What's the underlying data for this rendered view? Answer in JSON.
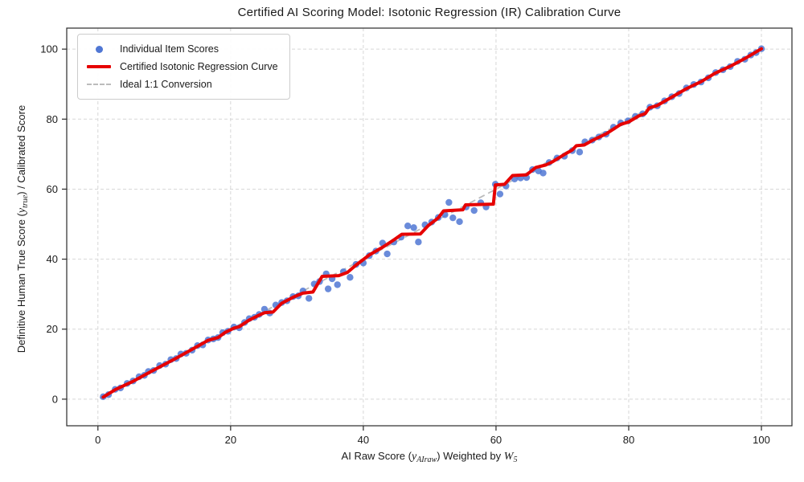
{
  "chart_data": {
    "type": "scatter",
    "title": "Certified AI Scoring Model: Isotonic Regression (IR) Calibration Curve",
    "xlabel_parts": {
      "pre": "AI Raw Score (",
      "var1": "y",
      "sub1": "AIraw",
      "mid": ") Weighted by ",
      "var2": "W",
      "sub2": "5"
    },
    "ylabel_parts": {
      "pre": "Definitive Human True Score (",
      "var1": "y",
      "sub1": "true",
      "post": ") / Calibrated Score"
    },
    "xlabel_text": "AI Raw Score (y_AIraw) Weighted by W_5",
    "ylabel_text": "Definitive Human True Score (y_true) / Calibrated Score",
    "xlim": [
      -4.7,
      104.6
    ],
    "ylim": [
      -7.6,
      106.0
    ],
    "x_ticks": [
      0,
      20,
      40,
      60,
      80,
      100
    ],
    "y_ticks": [
      0,
      20,
      40,
      60,
      80,
      100
    ],
    "grid": "dashed",
    "legend_position": "upper-left",
    "legend": [
      {
        "label": "Individual Item Scores",
        "marker": "dot",
        "color": "#5077d4"
      },
      {
        "label": "Certified Isotonic Regression Curve",
        "marker": "line",
        "color": "#e60000"
      },
      {
        "label": "Ideal 1:1 Conversion",
        "marker": "dash",
        "color": "#bcbcbc"
      }
    ],
    "colors": {
      "scatter": "#5077d4",
      "iso_curve": "#e60000",
      "ideal_line": "#bcbcbc",
      "grid": "#d7d7d7",
      "spine": "#2a2a2a",
      "text": "#1a1a1a"
    },
    "ideal_line": [
      [
        0.3,
        0.3
      ],
      [
        100.0,
        100.0
      ]
    ],
    "iso_curve": [
      [
        0.8,
        0.6
      ],
      [
        2.6,
        2.7
      ],
      [
        5.3,
        5.1
      ],
      [
        8.0,
        7.9
      ],
      [
        10.2,
        10.1
      ],
      [
        11.8,
        11.7
      ],
      [
        13.3,
        13.3
      ],
      [
        15.0,
        15.1
      ],
      [
        16.6,
        16.8
      ],
      [
        18.1,
        17.6
      ],
      [
        19.2,
        19.1
      ],
      [
        20.5,
        20.3
      ],
      [
        21.3,
        20.7
      ],
      [
        22.8,
        22.6
      ],
      [
        24.3,
        24.0
      ],
      [
        25.1,
        24.7
      ],
      [
        26.4,
        24.9
      ],
      [
        27.7,
        27.4
      ],
      [
        29.4,
        29.1
      ],
      [
        30.9,
        30.3
      ],
      [
        32.4,
        30.6
      ],
      [
        33.8,
        35.1
      ],
      [
        36.3,
        35.3
      ],
      [
        37.6,
        36.2
      ],
      [
        38.9,
        38.3
      ],
      [
        40.9,
        41.2
      ],
      [
        42.9,
        43.4
      ],
      [
        44.6,
        45.5
      ],
      [
        45.8,
        47.1
      ],
      [
        48.6,
        47.2
      ],
      [
        49.8,
        49.6
      ],
      [
        51.3,
        51.8
      ],
      [
        52.1,
        53.8
      ],
      [
        55.0,
        54.1
      ],
      [
        55.4,
        55.5
      ],
      [
        59.6,
        55.7
      ],
      [
        59.9,
        61.2
      ],
      [
        61.3,
        61.4
      ],
      [
        62.5,
        63.9
      ],
      [
        64.6,
        64.1
      ],
      [
        66.0,
        66.2
      ],
      [
        67.5,
        66.9
      ],
      [
        68.5,
        67.8
      ],
      [
        70.3,
        69.9
      ],
      [
        71.5,
        71.2
      ],
      [
        72.1,
        72.4
      ],
      [
        73.3,
        72.6
      ],
      [
        74.5,
        73.9
      ],
      [
        76.6,
        75.8
      ],
      [
        78.8,
        78.5
      ],
      [
        80.0,
        79.2
      ],
      [
        81.5,
        80.9
      ],
      [
        82.5,
        81.6
      ],
      [
        83.1,
        83.2
      ],
      [
        84.3,
        83.9
      ],
      [
        86.5,
        86.3
      ],
      [
        88.7,
        88.7
      ],
      [
        90.9,
        90.7
      ],
      [
        93.1,
        93.2
      ],
      [
        95.3,
        95.1
      ],
      [
        97.5,
        97.3
      ],
      [
        100.0,
        100.1
      ]
    ],
    "scatter_points": [
      [
        0.8,
        0.7
      ],
      [
        1.6,
        1.3
      ],
      [
        2.6,
        2.8
      ],
      [
        3.4,
        3.2
      ],
      [
        4.4,
        4.5
      ],
      [
        5.3,
        5.2
      ],
      [
        6.2,
        6.4
      ],
      [
        7.0,
        6.8
      ],
      [
        7.6,
        7.9
      ],
      [
        8.4,
        8.2
      ],
      [
        9.3,
        9.6
      ],
      [
        10.2,
        10.0
      ],
      [
        11.0,
        11.3
      ],
      [
        11.8,
        11.6
      ],
      [
        12.5,
        12.9
      ],
      [
        13.3,
        13.1
      ],
      [
        14.2,
        14.0
      ],
      [
        15.0,
        15.3
      ],
      [
        15.8,
        15.5
      ],
      [
        16.6,
        16.9
      ],
      [
        17.4,
        17.2
      ],
      [
        18.1,
        17.6
      ],
      [
        18.8,
        19.0
      ],
      [
        19.6,
        19.4
      ],
      [
        20.5,
        20.6
      ],
      [
        21.3,
        20.4
      ],
      [
        22.1,
        21.9
      ],
      [
        22.8,
        23.0
      ],
      [
        23.6,
        23.4
      ],
      [
        24.3,
        24.2
      ],
      [
        25.1,
        25.7
      ],
      [
        25.9,
        24.6
      ],
      [
        26.8,
        26.9
      ],
      [
        27.7,
        27.6
      ],
      [
        28.5,
        28.1
      ],
      [
        29.4,
        29.3
      ],
      [
        30.2,
        29.5
      ],
      [
        30.9,
        30.9
      ],
      [
        31.8,
        28.8
      ],
      [
        32.6,
        32.9
      ],
      [
        33.4,
        33.6
      ],
      [
        34.4,
        35.8
      ],
      [
        34.7,
        31.5
      ],
      [
        35.3,
        34.4
      ],
      [
        36.1,
        32.7
      ],
      [
        37.0,
        36.4
      ],
      [
        38.0,
        34.8
      ],
      [
        38.9,
        38.5
      ],
      [
        40.0,
        38.9
      ],
      [
        40.9,
        41.0
      ],
      [
        41.9,
        42.3
      ],
      [
        42.9,
        44.6
      ],
      [
        43.6,
        41.5
      ],
      [
        44.6,
        44.9
      ],
      [
        45.7,
        46.3
      ],
      [
        46.7,
        49.5
      ],
      [
        47.6,
        49.0
      ],
      [
        48.3,
        44.9
      ],
      [
        49.3,
        49.8
      ],
      [
        50.3,
        50.6
      ],
      [
        51.3,
        51.9
      ],
      [
        52.3,
        52.7
      ],
      [
        52.9,
        56.2
      ],
      [
        53.5,
        51.8
      ],
      [
        54.5,
        50.7
      ],
      [
        55.5,
        54.9
      ],
      [
        56.7,
        53.9
      ],
      [
        57.7,
        56.1
      ],
      [
        58.5,
        54.9
      ],
      [
        59.9,
        61.4
      ],
      [
        60.6,
        58.6
      ],
      [
        61.5,
        60.9
      ],
      [
        62.8,
        62.9
      ],
      [
        63.7,
        63.2
      ],
      [
        64.6,
        63.3
      ],
      [
        65.5,
        65.6
      ],
      [
        66.4,
        65.2
      ],
      [
        67.1,
        64.6
      ],
      [
        68.0,
        67.6
      ],
      [
        69.2,
        68.9
      ],
      [
        70.3,
        69.4
      ],
      [
        71.5,
        71.0
      ],
      [
        72.6,
        70.6
      ],
      [
        73.4,
        73.5
      ],
      [
        74.5,
        74.0
      ],
      [
        75.5,
        74.9
      ],
      [
        76.6,
        75.7
      ],
      [
        77.7,
        77.7
      ],
      [
        78.8,
        78.9
      ],
      [
        79.9,
        79.5
      ],
      [
        81.0,
        80.8
      ],
      [
        82.1,
        81.5
      ],
      [
        83.2,
        83.4
      ],
      [
        84.3,
        83.8
      ],
      [
        85.4,
        85.2
      ],
      [
        86.5,
        86.4
      ],
      [
        87.6,
        87.3
      ],
      [
        88.7,
        88.9
      ],
      [
        89.8,
        89.9
      ],
      [
        90.9,
        90.6
      ],
      [
        92.0,
        91.8
      ],
      [
        93.1,
        93.3
      ],
      [
        94.2,
        94.1
      ],
      [
        95.3,
        95.0
      ],
      [
        96.4,
        96.5
      ],
      [
        97.5,
        97.1
      ],
      [
        98.4,
        98.3
      ],
      [
        99.2,
        99.0
      ],
      [
        100.0,
        100.1
      ]
    ]
  }
}
